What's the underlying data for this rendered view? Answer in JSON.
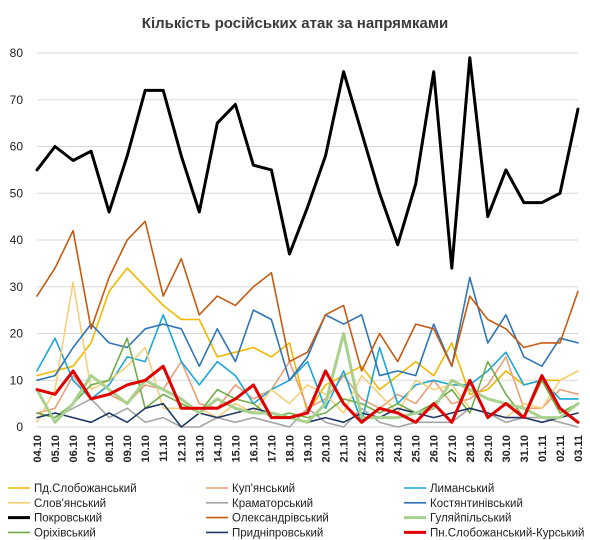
{
  "chart_data": {
    "type": "line",
    "title": "Кількість російських атак за напрямками",
    "ylim": [
      0,
      80
    ],
    "yticks": [
      0,
      10,
      20,
      30,
      40,
      50,
      60,
      70,
      80
    ],
    "grid": "horizontal",
    "legend_position": "bottom",
    "categories": [
      "04.10",
      "05.10",
      "06.10",
      "07.10",
      "08.10",
      "09.10",
      "10.10",
      "11.10",
      "12.10",
      "13.10",
      "14.10",
      "15.10",
      "16.10",
      "17.10",
      "18.10",
      "19.10",
      "20.10",
      "21.10",
      "22.10",
      "23.10",
      "24.10",
      "25.10",
      "26.10",
      "27.10",
      "28.10",
      "29.10",
      "30.10",
      "31.10",
      "01.11",
      "02.11",
      "03.11"
    ],
    "series": [
      {
        "name": "Пд.Слобожанський",
        "color": "#f2b800",
        "width": 1.6,
        "values": [
          11,
          12,
          13,
          18,
          29,
          34,
          30,
          26,
          23,
          23,
          15,
          16,
          17,
          15,
          18,
          3,
          9,
          11,
          13,
          8,
          11,
          14,
          11,
          18,
          7,
          8,
          12,
          9,
          10,
          10,
          12
        ]
      },
      {
        "name": "Куп'янський",
        "color": "#e8a07a",
        "width": 1.6,
        "values": [
          3,
          4,
          11,
          6,
          7,
          5,
          9,
          8,
          14,
          5,
          4,
          9,
          6,
          8,
          14,
          4,
          6,
          11,
          6,
          4,
          7,
          5,
          10,
          5,
          6,
          9,
          15,
          4,
          4,
          8,
          7
        ]
      },
      {
        "name": "Лиманський",
        "color": "#1aa7d8",
        "width": 1.6,
        "values": [
          12,
          19,
          10,
          6,
          9,
          15,
          14,
          24,
          14,
          9,
          14,
          11,
          5,
          8,
          10,
          14,
          4,
          12,
          1,
          17,
          5,
          9,
          10,
          9,
          9,
          12,
          16,
          9,
          10,
          6,
          6
        ]
      },
      {
        "name": "Слов'янський",
        "color": "#f5d078",
        "width": 1.6,
        "values": [
          1,
          8,
          31,
          8,
          10,
          13,
          17,
          4,
          4,
          4,
          2,
          5,
          3,
          8,
          5,
          9,
          7,
          3,
          11,
          7,
          3,
          10,
          8,
          9,
          4,
          3,
          2,
          5,
          4,
          10,
          12
        ]
      },
      {
        "name": "Краматорський",
        "color": "#a6a6a6",
        "width": 1.6,
        "values": [
          3,
          2,
          4,
          6,
          2,
          4,
          1,
          2,
          0,
          0,
          2,
          1,
          2,
          1,
          0,
          4,
          1,
          0,
          4,
          1,
          0,
          1,
          1,
          1,
          4,
          3,
          1,
          2,
          2,
          1,
          0
        ]
      },
      {
        "name": "Костянтинівський",
        "color": "#2e75b6",
        "width": 1.6,
        "values": [
          10,
          11,
          17,
          22,
          18,
          17,
          21,
          22,
          21,
          13,
          21,
          14,
          25,
          23,
          10,
          15,
          24,
          22,
          24,
          11,
          12,
          11,
          22,
          13,
          32,
          18,
          24,
          15,
          13,
          19,
          18
        ]
      },
      {
        "name": "Покровський",
        "color": "#000000",
        "width": 3,
        "values": [
          55,
          60,
          57,
          59,
          46,
          58,
          72,
          72,
          58,
          46,
          65,
          69,
          56,
          55,
          37,
          47,
          58,
          76,
          63,
          50,
          39,
          52,
          76,
          34,
          79,
          45,
          55,
          48,
          48,
          50,
          68
        ]
      },
      {
        "name": "Олександрівський",
        "color": "#c55a11",
        "width": 1.6,
        "values": [
          28,
          34,
          42,
          21,
          32,
          40,
          44,
          28,
          36,
          24,
          28,
          26,
          30,
          33,
          14,
          16,
          24,
          26,
          12,
          20,
          14,
          22,
          21,
          13,
          28,
          23,
          21,
          17,
          18,
          18,
          29
        ]
      },
      {
        "name": "Гуляйпільський",
        "color": "#a9d18e",
        "width": 3,
        "values": [
          8,
          1,
          5,
          11,
          8,
          5,
          10,
          8,
          6,
          3,
          6,
          4,
          3,
          3,
          2,
          1,
          5,
          20,
          2,
          2,
          2,
          3,
          4,
          10,
          8,
          6,
          5,
          4,
          2,
          2,
          5
        ]
      },
      {
        "name": "Оріхівський",
        "color": "#70ad47",
        "width": 1.6,
        "values": [
          3,
          2,
          5,
          9,
          10,
          19,
          4,
          7,
          5,
          3,
          8,
          6,
          5,
          2,
          3,
          2,
          3,
          6,
          5,
          3,
          5,
          3,
          5,
          8,
          3,
          14,
          7,
          2,
          10,
          3,
          5
        ]
      },
      {
        "name": "Придніпровський",
        "color": "#1f3864",
        "width": 1.6,
        "values": [
          2,
          3,
          2,
          1,
          3,
          1,
          4,
          5,
          0,
          3,
          2,
          3,
          4,
          3,
          2,
          1,
          2,
          1,
          3,
          2,
          4,
          3,
          2,
          3,
          4,
          3,
          2,
          2,
          1,
          2,
          3
        ]
      },
      {
        "name": "Пн.Слобожанський-Курський",
        "color": "#e00000",
        "width": 3,
        "values": [
          8,
          7,
          12,
          6,
          7,
          9,
          10,
          13,
          4,
          4,
          4,
          6,
          9,
          2,
          2,
          3,
          12,
          5,
          1,
          4,
          3,
          1,
          5,
          1,
          10,
          2,
          5,
          2,
          11,
          4,
          1
        ]
      }
    ]
  }
}
